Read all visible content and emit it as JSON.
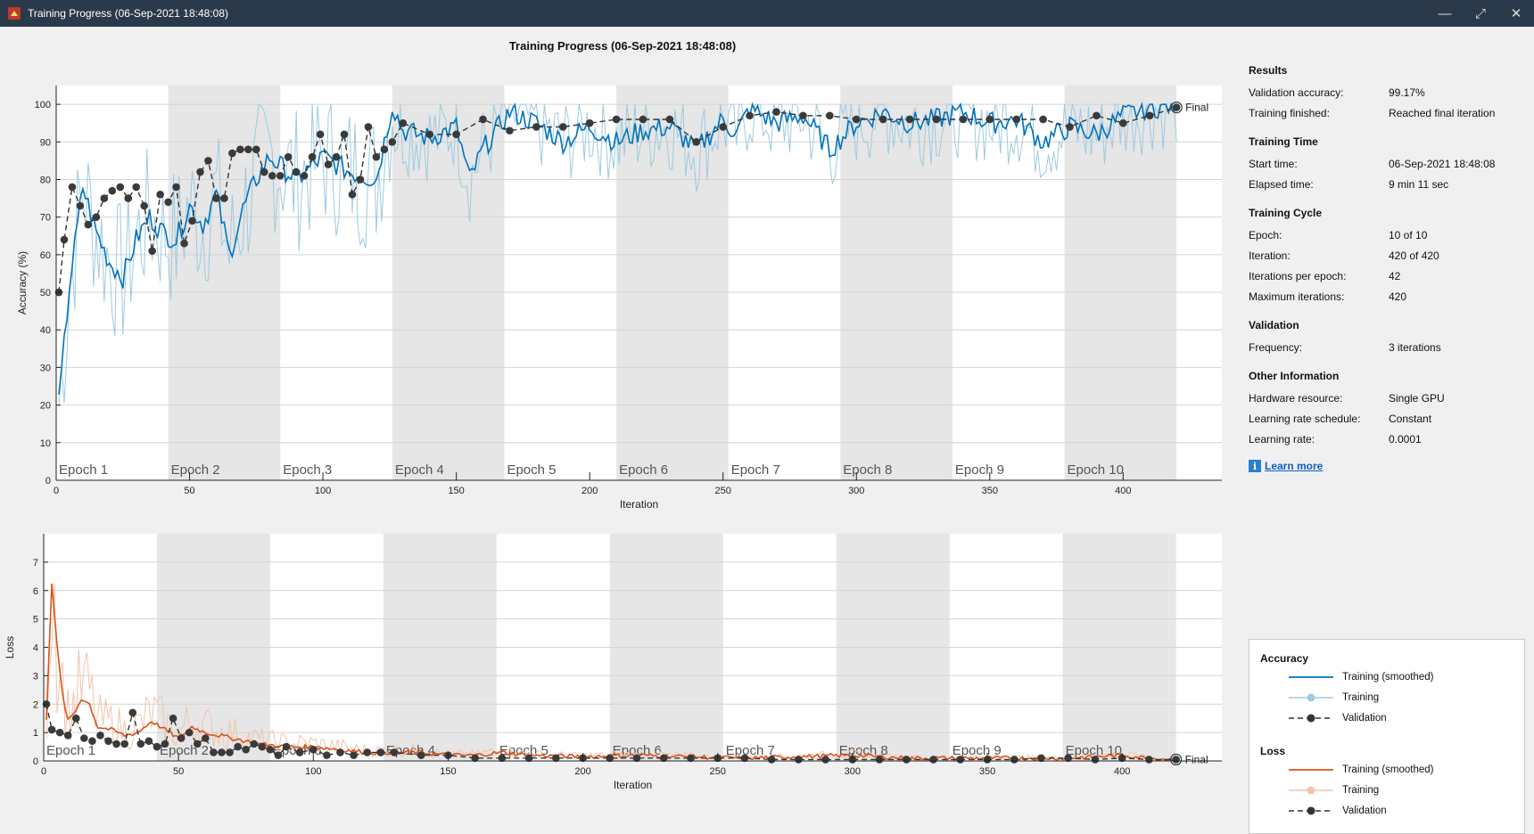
{
  "window": {
    "title": "Training Progress (06-Sep-2021 18:48:08)",
    "controls": [
      "minimize-icon",
      "maximize-icon",
      "close-icon"
    ]
  },
  "plot_title": "Training Progress (06-Sep-2021 18:48:08)",
  "final_label": "Final",
  "results": {
    "title": "Results",
    "rows": [
      {
        "k": "Validation accuracy:",
        "v": "99.17%"
      },
      {
        "k": "Training finished:",
        "v": "Reached final iteration"
      }
    ]
  },
  "training_time": {
    "title": "Training Time",
    "rows": [
      {
        "k": "Start time:",
        "v": "06-Sep-2021 18:48:08"
      },
      {
        "k": "Elapsed time:",
        "v": "9 min 11 sec"
      }
    ]
  },
  "training_cycle": {
    "title": "Training Cycle",
    "rows": [
      {
        "k": "Epoch:",
        "v": "10 of 10"
      },
      {
        "k": "Iteration:",
        "v": "420 of 420"
      },
      {
        "k": "Iterations per epoch:",
        "v": "42"
      },
      {
        "k": "Maximum iterations:",
        "v": "420"
      }
    ]
  },
  "validation": {
    "title": "Validation",
    "rows": [
      {
        "k": "Frequency:",
        "v": "3 iterations"
      }
    ]
  },
  "other_info": {
    "title": "Other Information",
    "rows": [
      {
        "k": "Hardware resource:",
        "v": "Single GPU"
      },
      {
        "k": "Learning rate schedule:",
        "v": "Constant"
      },
      {
        "k": "Learning rate:",
        "v": "0.0001"
      }
    ]
  },
  "learn_more": "Learn more",
  "legend": {
    "accuracy_title": "Accuracy",
    "loss_title": "Loss",
    "acc_items": [
      "Training (smoothed)",
      "Training",
      "Validation"
    ],
    "loss_items": [
      "Training (smoothed)",
      "Training",
      "Validation"
    ],
    "colors": {
      "acc_smooth": "#0072bd",
      "acc_raw": "#9ecae1",
      "loss_smooth": "#d95319",
      "loss_raw": "#f2c4ad",
      "validation": "#333333"
    }
  },
  "chart_data": [
    {
      "type": "line",
      "title": "Training Progress (06-Sep-2021 18:48:08)",
      "xlabel": "Iteration",
      "ylabel": "Accuracy (%)",
      "xlim": [
        0,
        437
      ],
      "ylim": [
        0,
        105
      ],
      "xticks": [
        0,
        50,
        100,
        150,
        200,
        250,
        300,
        350,
        400
      ],
      "yticks": [
        0,
        10,
        20,
        30,
        40,
        50,
        60,
        70,
        80,
        90,
        100
      ],
      "epochs": [
        "Epoch 1",
        "Epoch 2",
        "Epoch 3",
        "Epoch 4",
        "Epoch 5",
        "Epoch 6",
        "Epoch 7",
        "Epoch 8",
        "Epoch 9",
        "Epoch 10"
      ],
      "iterations_per_epoch": 42,
      "final_label": "Final",
      "series": [
        {
          "name": "Training (smoothed)",
          "x": [
            1,
            5,
            10,
            15,
            20,
            25,
            30,
            35,
            40,
            45,
            50,
            55,
            60,
            65,
            70,
            75,
            80,
            90,
            100,
            110,
            120,
            126,
            130,
            140,
            150,
            155,
            160,
            170,
            180,
            190,
            200,
            210,
            220,
            230,
            240,
            250,
            255,
            260,
            270,
            280,
            290,
            300,
            310,
            320,
            330,
            340,
            350,
            360,
            370,
            380,
            390,
            400,
            410,
            420
          ],
          "values": [
            20,
            52,
            78,
            66,
            58,
            54,
            64,
            70,
            66,
            64,
            73,
            68,
            76,
            60,
            72,
            80,
            86,
            80,
            86,
            82,
            80,
            100,
            93,
            91,
            94,
            80,
            88,
            98,
            95,
            90,
            94,
            90,
            93,
            94,
            88,
            96,
            92,
            99,
            95,
            97,
            88,
            95,
            98,
            95,
            96,
            98,
            95,
            96,
            90,
            94,
            92,
            97,
            99,
            100
          ]
        },
        {
          "name": "Validation",
          "x": [
            1,
            3,
            6,
            9,
            12,
            15,
            18,
            21,
            24,
            27,
            30,
            33,
            36,
            39,
            42,
            45,
            48,
            51,
            54,
            57,
            60,
            63,
            66,
            69,
            72,
            75,
            78,
            81,
            84,
            87,
            90,
            93,
            96,
            99,
            102,
            105,
            108,
            111,
            114,
            117,
            120,
            123,
            126,
            130,
            140,
            150,
            160,
            170,
            180,
            190,
            200,
            210,
            220,
            230,
            240,
            250,
            260,
            270,
            280,
            290,
            300,
            310,
            320,
            330,
            340,
            350,
            360,
            370,
            380,
            390,
            400,
            410,
            420
          ],
          "values": [
            50,
            64,
            78,
            73,
            68,
            70,
            75,
            77,
            78,
            75,
            78,
            73,
            61,
            76,
            74,
            78,
            63,
            69,
            82,
            85,
            75,
            75,
            87,
            88,
            88,
            88,
            82,
            81,
            81,
            86,
            82,
            81,
            86,
            92,
            84,
            86,
            92,
            76,
            80,
            94,
            86,
            88,
            90,
            95,
            92,
            92,
            96,
            93,
            94,
            94,
            95,
            96,
            96,
            96,
            90,
            94,
            97,
            98,
            97,
            97,
            96,
            96,
            96,
            96,
            96,
            96,
            96,
            96,
            94,
            97,
            95,
            97,
            99.17
          ]
        }
      ]
    },
    {
      "type": "line",
      "xlabel": "Iteration",
      "ylabel": "Loss",
      "xlim": [
        0,
        437
      ],
      "ylim": [
        0,
        8
      ],
      "xticks": [
        0,
        50,
        100,
        150,
        200,
        250,
        300,
        350,
        400
      ],
      "yticks": [
        0,
        1,
        2,
        3,
        4,
        5,
        6,
        7
      ],
      "epochs": [
        "Epoch 1",
        "Epoch 2",
        "Epoch 3",
        "Epoch 4",
        "Epoch 5",
        "Epoch 6",
        "Epoch 7",
        "Epoch 8",
        "Epoch 9",
        "Epoch 10"
      ],
      "final_label": "Final",
      "series": [
        {
          "name": "Training (smoothed)",
          "x": [
            1,
            3,
            5,
            7,
            9,
            12,
            14,
            17,
            20,
            25,
            30,
            35,
            40,
            45,
            50,
            55,
            60,
            70,
            80,
            90,
            100,
            110,
            120,
            130,
            140,
            150,
            160,
            170,
            180,
            200,
            220,
            240,
            260,
            280,
            300,
            320,
            340,
            360,
            380,
            400,
            410,
            420
          ],
          "values": [
            1.5,
            6.3,
            4.0,
            2.3,
            1.4,
            1.8,
            2.2,
            2.0,
            1.2,
            1.1,
            0.9,
            1.0,
            1.4,
            1.1,
            0.8,
            1.2,
            1.0,
            0.8,
            0.6,
            0.5,
            0.5,
            0.4,
            0.3,
            0.3,
            0.3,
            0.2,
            0.2,
            0.3,
            0.2,
            0.15,
            0.2,
            0.15,
            0.1,
            0.15,
            0.2,
            0.1,
            0.1,
            0.1,
            0.1,
            0.2,
            0.1,
            0.05
          ]
        },
        {
          "name": "Validation",
          "x": [
            1,
            3,
            6,
            9,
            12,
            15,
            18,
            21,
            24,
            27,
            30,
            33,
            36,
            39,
            42,
            45,
            48,
            51,
            54,
            57,
            60,
            63,
            66,
            69,
            72,
            75,
            78,
            81,
            84,
            87,
            90,
            95,
            100,
            105,
            110,
            115,
            120,
            125,
            130,
            140,
            150,
            160,
            170,
            180,
            190,
            200,
            210,
            220,
            230,
            240,
            250,
            260,
            270,
            280,
            290,
            300,
            310,
            320,
            330,
            340,
            350,
            360,
            370,
            380,
            390,
            400,
            410,
            420
          ],
          "values": [
            2.0,
            1.1,
            1.0,
            0.9,
            1.5,
            0.8,
            0.7,
            0.9,
            0.7,
            0.6,
            0.6,
            1.7,
            0.6,
            0.7,
            0.5,
            0.6,
            1.5,
            0.8,
            1.0,
            0.6,
            0.8,
            0.3,
            0.3,
            0.3,
            0.5,
            0.4,
            0.6,
            0.5,
            0.4,
            0.2,
            0.5,
            0.3,
            0.4,
            0.2,
            0.3,
            0.2,
            0.3,
            0.3,
            0.3,
            0.2,
            0.2,
            0.1,
            0.1,
            0.1,
            0.1,
            0.1,
            0.1,
            0.1,
            0.1,
            0.1,
            0.1,
            0.1,
            0.05,
            0.05,
            0.05,
            0.05,
            0.05,
            0.05,
            0.05,
            0.05,
            0.05,
            0.05,
            0.1,
            0.1,
            0.05,
            0.1,
            0.05,
            0.05
          ]
        }
      ]
    }
  ]
}
